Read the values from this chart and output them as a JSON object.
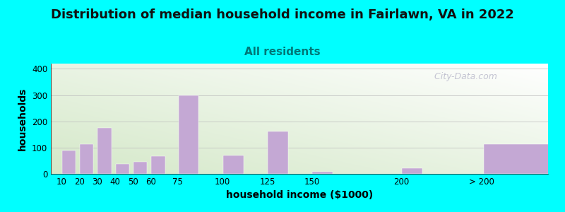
{
  "title": "Distribution of median household income in Fairlawn, VA in 2022",
  "subtitle": "All residents",
  "xlabel": "household income ($1000)",
  "ylabel": "households",
  "background_fig": "#00FFFF",
  "bar_color": "#C4A8D4",
  "categories": [
    "10",
    "20",
    "30",
    "40",
    "50",
    "60",
    "75",
    "100",
    "125",
    "150",
    "200",
    "> 200"
  ],
  "values": [
    90,
    112,
    175,
    38,
    47,
    68,
    298,
    70,
    162,
    8,
    22,
    112
  ],
  "ylim": [
    0,
    420
  ],
  "yticks": [
    0,
    100,
    200,
    300,
    400
  ],
  "watermark": "  City-Data.com",
  "title_fontsize": 13,
  "subtitle_fontsize": 11,
  "axis_label_fontsize": 10,
  "subtitle_color": "#007777",
  "title_color": "#111111"
}
